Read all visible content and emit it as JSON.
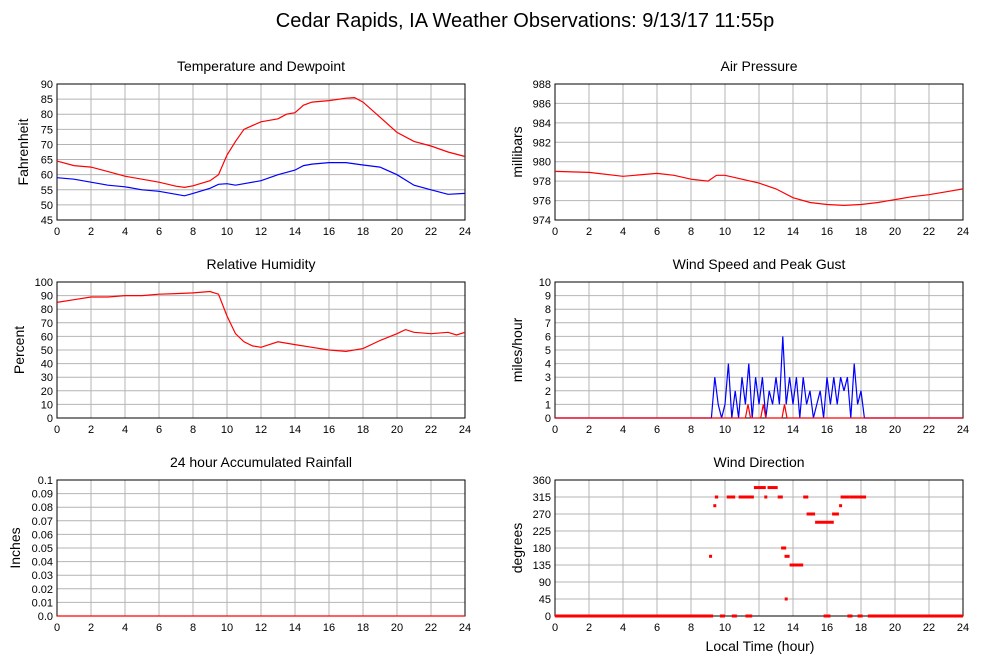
{
  "page_title": "Cedar Rapids, IA Weather Observations: 9/13/17 11:55p",
  "x_axis_label": "Local Time (hour)",
  "x_ticks": [
    "0",
    "2",
    "4",
    "6",
    "8",
    "10",
    "12",
    "14",
    "16",
    "18",
    "20",
    "22",
    "24"
  ],
  "colors": {
    "red": "#ff0000",
    "blue": "#0000ff",
    "grid": "#b4b4b4"
  },
  "chart_data": [
    {
      "id": "temp",
      "type": "line",
      "title": "Temperature and Dewpoint",
      "ylabel": "Fahrenheit",
      "xlim": [
        0,
        24
      ],
      "ylim": [
        45,
        90
      ],
      "y_ticks": [
        "45",
        "50",
        "55",
        "60",
        "65",
        "70",
        "75",
        "80",
        "85",
        "90"
      ],
      "grid": true,
      "series": [
        {
          "color": "#ff0000",
          "x": [
            0,
            1,
            2,
            3,
            4,
            5,
            6,
            7,
            7.5,
            8,
            9,
            9.5,
            10,
            10.5,
            11,
            12,
            13,
            13.5,
            14,
            14.5,
            15,
            16,
            17,
            17.5,
            18,
            19,
            20,
            21,
            22,
            23,
            24
          ],
          "y": [
            64.5,
            63,
            62.5,
            61,
            59.5,
            58.5,
            57.5,
            56.2,
            55.8,
            56.3,
            58,
            60,
            66.5,
            71,
            75,
            77.5,
            78.5,
            80,
            80.5,
            83,
            84,
            84.5,
            85.3,
            85.5,
            84,
            79,
            74,
            71,
            69.5,
            67.5,
            66
          ]
        },
        {
          "color": "#0000ff",
          "x": [
            0,
            1,
            2,
            3,
            4,
            5,
            6,
            7,
            7.5,
            8,
            9,
            9.5,
            10,
            10.5,
            11,
            12,
            13,
            14,
            14.5,
            15,
            16,
            17,
            18,
            19,
            20,
            21,
            22,
            23,
            24
          ],
          "y": [
            59,
            58.5,
            57.5,
            56.5,
            56,
            55,
            54.5,
            53.5,
            53,
            53.8,
            55.5,
            56.8,
            57,
            56.5,
            57,
            58,
            60,
            61.5,
            63,
            63.5,
            64,
            64,
            63.2,
            62.5,
            60,
            56.5,
            55,
            53.5,
            53.8
          ]
        }
      ]
    },
    {
      "id": "pressure",
      "type": "line",
      "title": "Air Pressure",
      "ylabel": "millibars",
      "xlim": [
        0,
        24
      ],
      "ylim": [
        974,
        988
      ],
      "y_ticks": [
        "974",
        "976",
        "978",
        "980",
        "982",
        "984",
        "986",
        "988"
      ],
      "grid": true,
      "series": [
        {
          "color": "#ff0000",
          "x": [
            0,
            2,
            4,
            6,
            7,
            8,
            9,
            9.5,
            10,
            11,
            12,
            13,
            14,
            15,
            16,
            17,
            18,
            19,
            20,
            21,
            22,
            23,
            24
          ],
          "y": [
            979,
            978.9,
            978.5,
            978.8,
            978.6,
            978.2,
            978,
            978.6,
            978.6,
            978.2,
            977.8,
            977.2,
            976.3,
            975.8,
            975.6,
            975.5,
            975.6,
            975.8,
            976.1,
            976.4,
            976.6,
            976.9,
            977.2
          ]
        }
      ]
    },
    {
      "id": "rh",
      "type": "line",
      "title": "Relative Humidity",
      "ylabel": "Percent",
      "xlim": [
        0,
        24
      ],
      "ylim": [
        0,
        100
      ],
      "y_ticks": [
        "0",
        "10",
        "20",
        "30",
        "40",
        "50",
        "60",
        "70",
        "80",
        "90",
        "100"
      ],
      "grid": true,
      "series": [
        {
          "color": "#ff0000",
          "x": [
            0,
            1,
            2,
            3,
            4,
            5,
            6,
            7,
            8,
            9,
            9.5,
            10,
            10.5,
            11,
            11.5,
            12,
            13,
            14,
            15,
            16,
            17,
            18,
            19,
            20,
            20.5,
            21,
            22,
            23,
            23.5,
            24
          ],
          "y": [
            85,
            87,
            89,
            89,
            90,
            90,
            91,
            91.5,
            92,
            93,
            91,
            75,
            62,
            56,
            53,
            52,
            56,
            54,
            52,
            50,
            49,
            51,
            57,
            62,
            65,
            63,
            62,
            63,
            61,
            63
          ]
        }
      ]
    },
    {
      "id": "wind",
      "type": "line",
      "title": "Wind Speed and Peak Gust",
      "ylabel": "miles/hour",
      "xlim": [
        0,
        24
      ],
      "ylim": [
        0,
        10
      ],
      "y_ticks": [
        "0",
        "1",
        "2",
        "3",
        "4",
        "5",
        "6",
        "7",
        "8",
        "9",
        "10"
      ],
      "grid": true,
      "series": [
        {
          "color": "#0000ff",
          "x": [
            0,
            9.2,
            9.4,
            9.6,
            9.8,
            10,
            10.2,
            10.4,
            10.6,
            10.8,
            11,
            11.2,
            11.4,
            11.6,
            11.8,
            12,
            12.2,
            12.4,
            12.6,
            12.8,
            13,
            13.2,
            13.4,
            13.6,
            13.8,
            14,
            14.2,
            14.4,
            14.6,
            14.8,
            15,
            15.2,
            15.4,
            15.6,
            15.8,
            16,
            16.2,
            16.4,
            16.6,
            16.8,
            17,
            17.2,
            17.4,
            17.6,
            17.8,
            18,
            18.2,
            18.4,
            24
          ],
          "y": [
            0,
            0,
            3,
            1,
            0,
            1,
            4,
            0,
            2,
            0,
            3,
            1,
            4,
            0,
            3,
            1,
            3,
            0,
            2,
            1,
            3,
            1,
            6,
            1,
            3,
            1,
            3,
            0,
            3,
            1,
            2,
            0,
            1,
            2,
            0,
            3,
            1,
            3,
            1,
            3,
            2,
            3,
            0,
            4,
            1,
            2,
            0,
            0,
            0
          ]
        },
        {
          "color": "#ff0000",
          "x": [
            0,
            11.2,
            11.35,
            11.5,
            12.1,
            12.25,
            12.4,
            13.35,
            13.5,
            13.65,
            24
          ],
          "y": [
            0,
            0,
            1,
            0,
            0,
            1,
            0,
            0,
            1,
            0,
            0
          ]
        }
      ]
    },
    {
      "id": "rain",
      "type": "line",
      "title": "24 hour Accumulated Rainfall",
      "ylabel": "Inches",
      "xlim": [
        0,
        24
      ],
      "ylim": [
        0,
        0.1
      ],
      "y_ticks": [
        "0.0",
        "0.01",
        "0.02",
        "0.03",
        "0.04",
        "0.05",
        "0.06",
        "0.07",
        "0.08",
        "0.09",
        "0.1"
      ],
      "grid": true,
      "series": [
        {
          "color": "#ff0000",
          "x": [
            0,
            24
          ],
          "y": [
            0,
            0
          ]
        }
      ]
    },
    {
      "id": "wdir",
      "type": "scatter",
      "title": "Wind Direction",
      "ylabel": "degrees",
      "xlim": [
        0,
        24
      ],
      "ylim": [
        0,
        360
      ],
      "y_ticks": [
        "0",
        "45",
        "90",
        "135",
        "180",
        "225",
        "270",
        "315",
        "360"
      ],
      "grid": true,
      "segments": [
        {
          "x0": 0,
          "x1": 9.3,
          "y": 0
        },
        {
          "x0": 9.7,
          "x1": 10,
          "y": 0
        },
        {
          "x0": 10.4,
          "x1": 10.7,
          "y": 0
        },
        {
          "x0": 11.2,
          "x1": 11.6,
          "y": 0
        },
        {
          "x0": 15.8,
          "x1": 16.2,
          "y": 0
        },
        {
          "x0": 17.2,
          "x1": 17.5,
          "y": 0
        },
        {
          "x0": 17.8,
          "x1": 18.1,
          "y": 0
        },
        {
          "x0": 18.4,
          "x1": 24,
          "y": 0
        },
        {
          "x0": 9.4,
          "x1": 9.6,
          "y": 315
        },
        {
          "x0": 10.1,
          "x1": 10.6,
          "y": 315
        },
        {
          "x0": 10.8,
          "x1": 11.7,
          "y": 315
        },
        {
          "x0": 11.7,
          "x1": 12.4,
          "y": 340
        },
        {
          "x0": 12.5,
          "x1": 13.1,
          "y": 340
        },
        {
          "x0": 13.1,
          "x1": 13.4,
          "y": 315
        },
        {
          "x0": 13.3,
          "x1": 13.6,
          "y": 180
        },
        {
          "x0": 13.5,
          "x1": 13.8,
          "y": 158
        },
        {
          "x0": 13.8,
          "x1": 14.6,
          "y": 135
        },
        {
          "x0": 14.6,
          "x1": 14.9,
          "y": 315
        },
        {
          "x0": 14.8,
          "x1": 15.3,
          "y": 270
        },
        {
          "x0": 15.3,
          "x1": 16.4,
          "y": 248
        },
        {
          "x0": 16.3,
          "x1": 16.7,
          "y": 270
        },
        {
          "x0": 16.8,
          "x1": 17.3,
          "y": 315
        },
        {
          "x0": 17.3,
          "x1": 18.3,
          "y": 315
        }
      ],
      "points": [
        {
          "x": 9.15,
          "y": 158
        },
        {
          "x": 9.4,
          "y": 292
        },
        {
          "x": 12.4,
          "y": 315
        },
        {
          "x": 13.6,
          "y": 45
        },
        {
          "x": 16.8,
          "y": 292
        }
      ]
    }
  ]
}
